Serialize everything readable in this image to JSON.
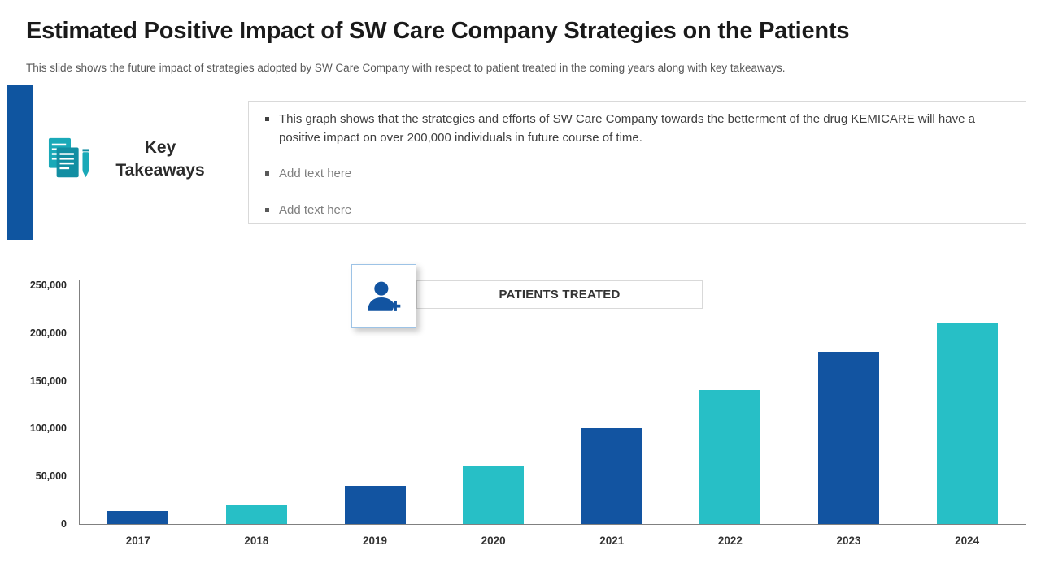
{
  "colors": {
    "dark_blue": "#1254a1",
    "teal": "#27bfc6",
    "accent_bar": "#0f55a0"
  },
  "header": {
    "title": "Estimated Positive Impact of SW Care Company Strategies on the Patients",
    "subtitle": "This slide shows the future impact of strategies adopted by SW Care Company with respect to patient treated in the coming years along with key takeaways."
  },
  "key_takeaways": {
    "heading": "Key Takeaways",
    "icon": "documents-pen-icon",
    "bullets": [
      "This graph shows that the strategies and efforts of SW Care Company towards the betterment of the drug KEMICARE will have a positive impact on over 200,000 individuals in future course of time.",
      "Add text here",
      "Add text here"
    ]
  },
  "chart_data": {
    "type": "bar",
    "title": "PATIENTS TREATED",
    "categories": [
      "2017",
      "2018",
      "2019",
      "2020",
      "2021",
      "2022",
      "2023",
      "2024"
    ],
    "values": [
      14000,
      20000,
      40000,
      60000,
      100000,
      140000,
      180000,
      210000
    ],
    "bar_colors": [
      "#1254a1",
      "#27bfc6",
      "#1254a1",
      "#27bfc6",
      "#1254a1",
      "#27bfc6",
      "#1254a1",
      "#27bfc6"
    ],
    "xlabel": "",
    "ylabel": "",
    "ylim": [
      0,
      250000
    ],
    "yticks": [
      "0",
      "50,000",
      "100,000",
      "150,000",
      "200,000",
      "250,000"
    ],
    "grid": false,
    "legend": "none"
  }
}
